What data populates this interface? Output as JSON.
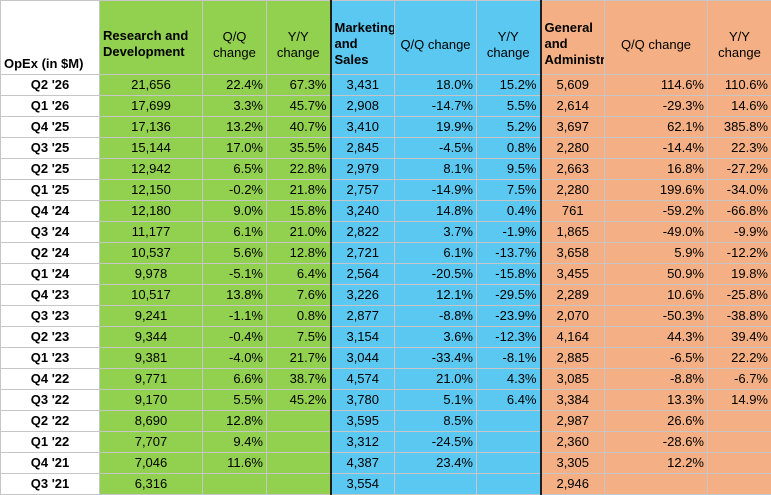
{
  "header": {
    "row_label": "OpEx (in $M)",
    "groups": [
      {
        "name": "Research and Development",
        "qq": "Q/Q change",
        "yy": "Y/Y change"
      },
      {
        "name": "Marketing and Sales",
        "qq": "Q/Q change",
        "yy": "Y/Y change"
      },
      {
        "name": "General and Administrative",
        "qq": "Q/Q change",
        "yy": "Y/Y change"
      }
    ]
  },
  "rows": [
    {
      "q": "Q2 '26",
      "rd": "21,656",
      "rd_qq": "22.4%",
      "rd_yy": "67.3%",
      "ms": "3,431",
      "ms_qq": "18.0%",
      "ms_yy": "15.2%",
      "ga": "5,609",
      "ga_qq": "114.6%",
      "ga_yy": "110.6%"
    },
    {
      "q": "Q1 '26",
      "rd": "17,699",
      "rd_qq": "3.3%",
      "rd_yy": "45.7%",
      "ms": "2,908",
      "ms_qq": "-14.7%",
      "ms_yy": "5.5%",
      "ga": "2,614",
      "ga_qq": "-29.3%",
      "ga_yy": "14.6%"
    },
    {
      "q": "Q4 '25",
      "rd": "17,136",
      "rd_qq": "13.2%",
      "rd_yy": "40.7%",
      "ms": "3,410",
      "ms_qq": "19.9%",
      "ms_yy": "5.2%",
      "ga": "3,697",
      "ga_qq": "62.1%",
      "ga_yy": "385.8%"
    },
    {
      "q": "Q3 '25",
      "rd": "15,144",
      "rd_qq": "17.0%",
      "rd_yy": "35.5%",
      "ms": "2,845",
      "ms_qq": "-4.5%",
      "ms_yy": "0.8%",
      "ga": "2,280",
      "ga_qq": "-14.4%",
      "ga_yy": "22.3%"
    },
    {
      "q": "Q2 '25",
      "rd": "12,942",
      "rd_qq": "6.5%",
      "rd_yy": "22.8%",
      "ms": "2,979",
      "ms_qq": "8.1%",
      "ms_yy": "9.5%",
      "ga": "2,663",
      "ga_qq": "16.8%",
      "ga_yy": "-27.2%"
    },
    {
      "q": "Q1 '25",
      "rd": "12,150",
      "rd_qq": "-0.2%",
      "rd_yy": "21.8%",
      "ms": "2,757",
      "ms_qq": "-14.9%",
      "ms_yy": "7.5%",
      "ga": "2,280",
      "ga_qq": "199.6%",
      "ga_yy": "-34.0%"
    },
    {
      "q": "Q4 '24",
      "rd": "12,180",
      "rd_qq": "9.0%",
      "rd_yy": "15.8%",
      "ms": "3,240",
      "ms_qq": "14.8%",
      "ms_yy": "0.4%",
      "ga": "761",
      "ga_qq": "-59.2%",
      "ga_yy": "-66.8%"
    },
    {
      "q": "Q3 '24",
      "rd": "11,177",
      "rd_qq": "6.1%",
      "rd_yy": "21.0%",
      "ms": "2,822",
      "ms_qq": "3.7%",
      "ms_yy": "-1.9%",
      "ga": "1,865",
      "ga_qq": "-49.0%",
      "ga_yy": "-9.9%"
    },
    {
      "q": "Q2 '24",
      "rd": "10,537",
      "rd_qq": "5.6%",
      "rd_yy": "12.8%",
      "ms": "2,721",
      "ms_qq": "6.1%",
      "ms_yy": "-13.7%",
      "ga": "3,658",
      "ga_qq": "5.9%",
      "ga_yy": "-12.2%"
    },
    {
      "q": "Q1 '24",
      "rd": "9,978",
      "rd_qq": "-5.1%",
      "rd_yy": "6.4%",
      "ms": "2,564",
      "ms_qq": "-20.5%",
      "ms_yy": "-15.8%",
      "ga": "3,455",
      "ga_qq": "50.9%",
      "ga_yy": "19.8%"
    },
    {
      "q": "Q4 '23",
      "rd": "10,517",
      "rd_qq": "13.8%",
      "rd_yy": "7.6%",
      "ms": "3,226",
      "ms_qq": "12.1%",
      "ms_yy": "-29.5%",
      "ga": "2,289",
      "ga_qq": "10.6%",
      "ga_yy": "-25.8%"
    },
    {
      "q": "Q3 '23",
      "rd": "9,241",
      "rd_qq": "-1.1%",
      "rd_yy": "0.8%",
      "ms": "2,877",
      "ms_qq": "-8.8%",
      "ms_yy": "-23.9%",
      "ga": "2,070",
      "ga_qq": "-50.3%",
      "ga_yy": "-38.8%"
    },
    {
      "q": "Q2 '23",
      "rd": "9,344",
      "rd_qq": "-0.4%",
      "rd_yy": "7.5%",
      "ms": "3,154",
      "ms_qq": "3.6%",
      "ms_yy": "-12.3%",
      "ga": "4,164",
      "ga_qq": "44.3%",
      "ga_yy": "39.4%"
    },
    {
      "q": "Q1 '23",
      "rd": "9,381",
      "rd_qq": "-4.0%",
      "rd_yy": "21.7%",
      "ms": "3,044",
      "ms_qq": "-33.4%",
      "ms_yy": "-8.1%",
      "ga": "2,885",
      "ga_qq": "-6.5%",
      "ga_yy": "22.2%"
    },
    {
      "q": "Q4 '22",
      "rd": "9,771",
      "rd_qq": "6.6%",
      "rd_yy": "38.7%",
      "ms": "4,574",
      "ms_qq": "21.0%",
      "ms_yy": "4.3%",
      "ga": "3,085",
      "ga_qq": "-8.8%",
      "ga_yy": "-6.7%"
    },
    {
      "q": "Q3 '22",
      "rd": "9,170",
      "rd_qq": "5.5%",
      "rd_yy": "45.2%",
      "ms": "3,780",
      "ms_qq": "5.1%",
      "ms_yy": "6.4%",
      "ga": "3,384",
      "ga_qq": "13.3%",
      "ga_yy": "14.9%"
    },
    {
      "q": "Q2 '22",
      "rd": "8,690",
      "rd_qq": "12.8%",
      "rd_yy": "",
      "ms": "3,595",
      "ms_qq": "8.5%",
      "ms_yy": "",
      "ga": "2,987",
      "ga_qq": "26.6%",
      "ga_yy": ""
    },
    {
      "q": "Q1 '22",
      "rd": "7,707",
      "rd_qq": "9.4%",
      "rd_yy": "",
      "ms": "3,312",
      "ms_qq": "-24.5%",
      "ms_yy": "",
      "ga": "2,360",
      "ga_qq": "-28.6%",
      "ga_yy": ""
    },
    {
      "q": "Q4 '21",
      "rd": "7,046",
      "rd_qq": "11.6%",
      "rd_yy": "",
      "ms": "4,387",
      "ms_qq": "23.4%",
      "ms_yy": "",
      "ga": "3,305",
      "ga_qq": "12.2%",
      "ga_yy": ""
    },
    {
      "q": "Q3 '21",
      "rd": "6,316",
      "rd_qq": "",
      "rd_yy": "",
      "ms": "3,554",
      "ms_qq": "",
      "ms_yy": "",
      "ga": "2,946",
      "ga_qq": "",
      "ga_yy": ""
    }
  ],
  "colors": {
    "rd": "#92d050",
    "ms": "#5bc8f2",
    "ga": "#f4b084"
  }
}
